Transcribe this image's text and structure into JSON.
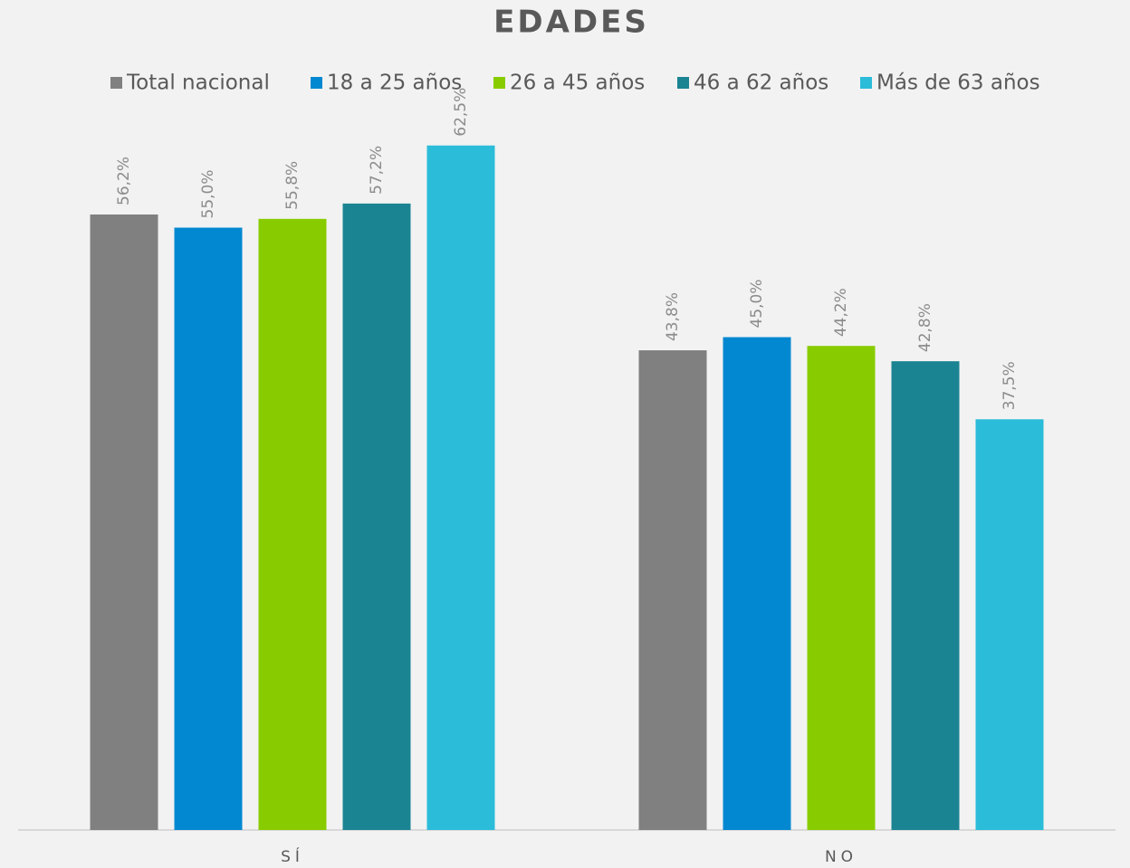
{
  "chart_data": {
    "type": "bar",
    "title": "EDADES",
    "categories": [
      "SÍ",
      "NO"
    ],
    "series": [
      {
        "name": "Total nacional",
        "color": "#808080",
        "values": [
          56.2,
          43.8
        ],
        "value_labels": [
          "56,2%",
          "43,8%"
        ]
      },
      {
        "name": "18 a 25 años",
        "color": "#0288d1",
        "values": [
          55.0,
          45.0
        ],
        "value_labels": [
          "55,0%",
          "45,0%"
        ]
      },
      {
        "name": "26 a 45 años",
        "color": "#88cc00",
        "values": [
          55.8,
          44.2
        ],
        "value_labels": [
          "55,8%",
          "44,2%"
        ]
      },
      {
        "name": "46 a 62 años",
        "color": "#1b8493",
        "values": [
          57.2,
          42.8
        ],
        "value_labels": [
          "57,2%",
          "42,8%"
        ]
      },
      {
        "name": "Más de 63 años",
        "color": "#2bbcd9",
        "values": [
          62.5,
          37.5
        ],
        "value_labels": [
          "62,5%",
          "37,5%"
        ]
      }
    ],
    "ylim": [
      0,
      70
    ],
    "legend": "top"
  }
}
